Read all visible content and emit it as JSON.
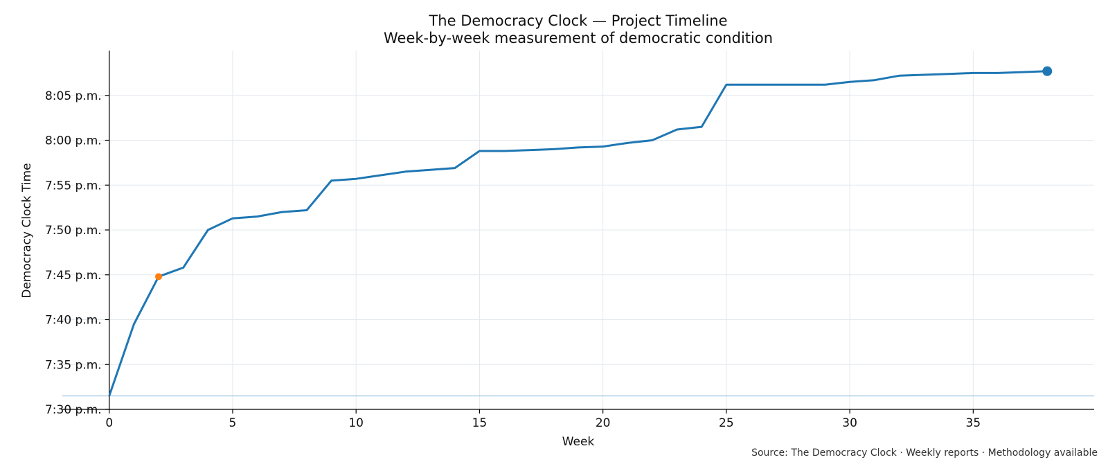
{
  "chart_data": {
    "type": "line",
    "title": "The Democracy Clock — Project Timeline",
    "subtitle": "Week-by-week measurement of democratic condition",
    "xlabel": "Week",
    "ylabel": "Democracy Clock Time",
    "source": "Source: The Democracy Clock · Weekly reports · Methodology available",
    "xlim": [
      -1.9,
      39.9
    ],
    "ylim_minutes": [
      450,
      490
    ],
    "x_ticks": [
      0,
      5,
      10,
      15,
      20,
      25,
      30,
      35
    ],
    "x_tick_labels": [
      "0",
      "5",
      "10",
      "15",
      "20",
      "25",
      "30",
      "35"
    ],
    "y_ticks_minutes": [
      450,
      455,
      460,
      465,
      470,
      475,
      480,
      485
    ],
    "y_tick_labels": [
      "7:30 p.m.",
      "7:35 p.m.",
      "7:40 p.m.",
      "7:45 p.m.",
      "7:50 p.m.",
      "7:55 p.m.",
      "8:00 p.m.",
      "8:05 p.m."
    ],
    "grid": true,
    "reference_line_minutes": 451.5,
    "reference_line_color": "#a9cce3",
    "line_color": "#1f77b4",
    "highlight_color": "#ff7f0e",
    "series": [
      {
        "x": [
          0,
          1,
          2,
          3,
          4,
          5,
          6,
          7,
          8,
          9,
          10,
          11,
          12,
          13,
          14,
          15,
          16,
          17,
          18,
          19,
          20,
          21,
          22,
          23,
          24,
          25,
          26,
          27,
          28,
          29,
          30,
          31,
          32,
          33,
          34,
          35,
          36,
          37,
          38
        ],
        "y_minutes": [
          451.5,
          459.5,
          464.8,
          465.8,
          470,
          471.3,
          471.5,
          472,
          472.2,
          475.5,
          475.7,
          476.1,
          476.5,
          476.7,
          476.9,
          478.8,
          478.8,
          478.9,
          479,
          479.2,
          479.3,
          479.7,
          480,
          481.2,
          481.5,
          486.2,
          486.2,
          486.2,
          486.2,
          486.2,
          486.5,
          486.7,
          487.2,
          487.3,
          487.4,
          487.5,
          487.5,
          487.6,
          487.7
        ]
      }
    ],
    "highlight_point": {
      "x": 2,
      "y_minutes": 464.8
    },
    "end_point": {
      "x": 38,
      "y_minutes": 487.7
    }
  }
}
